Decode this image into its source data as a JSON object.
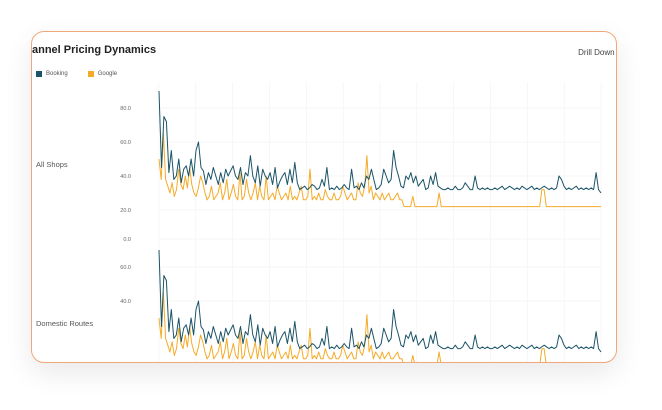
{
  "card": {
    "title": "annel Pricing Dynamics",
    "drill_label": "Drill Down t"
  },
  "legend": [
    {
      "label": "Booking",
      "color": "#1b5468"
    },
    {
      "label": "Google",
      "color": "#f5ab27"
    }
  ],
  "chart_data": [
    {
      "type": "line",
      "row_label": "All Shops",
      "y_ticks": [
        "80.0",
        "60.0",
        "40.0",
        "20.0",
        "0.0"
      ],
      "ylim": [
        0,
        90
      ],
      "grid": true,
      "legend_position": "top-left",
      "series": [
        {
          "name": "Booking",
          "color": "#1b5468",
          "values": [
            90,
            45,
            75,
            72,
            42,
            55,
            38,
            40,
            50,
            36,
            44,
            46,
            40,
            50,
            40,
            55,
            60,
            45,
            43,
            35,
            42,
            38,
            45,
            40,
            35,
            42,
            36,
            44,
            40,
            43,
            46,
            40,
            38,
            45,
            35,
            42,
            40,
            52,
            40,
            36,
            46,
            34,
            44,
            40,
            38,
            42,
            35,
            45,
            33,
            37,
            40,
            42,
            35,
            44,
            36,
            48,
            36,
            32,
            33,
            34,
            32,
            33,
            35,
            34,
            32,
            33,
            38,
            34,
            45,
            32,
            33,
            32,
            34,
            32,
            33,
            35,
            33,
            32,
            44,
            33,
            34,
            32,
            36,
            33,
            40,
            38,
            44,
            38,
            32,
            33,
            35,
            44,
            40,
            36,
            38,
            55,
            45,
            40,
            34,
            33,
            40,
            38,
            42,
            36,
            40,
            34,
            36,
            38,
            32,
            33,
            40,
            35,
            42,
            34,
            33,
            32,
            32,
            33,
            32,
            32,
            34,
            32,
            32,
            33,
            36,
            34,
            32,
            32,
            40,
            33,
            32,
            33,
            32,
            33,
            32,
            32,
            33,
            32,
            33,
            34,
            32,
            33,
            34,
            33,
            32,
            33,
            32,
            34,
            33,
            32,
            33,
            34,
            32,
            33,
            32,
            33,
            34,
            33,
            32,
            33,
            32,
            33,
            40,
            38,
            34,
            32,
            33,
            32,
            33,
            34,
            32,
            33,
            32,
            33,
            32,
            33,
            32,
            42,
            32,
            30
          ]
        },
        {
          "name": "Google",
          "color": "#f5ab27",
          "values": [
            50,
            38,
            65,
            38,
            34,
            30,
            36,
            28,
            32,
            44,
            35,
            32,
            40,
            33,
            45,
            35,
            30,
            28,
            33,
            40,
            36,
            30,
            26,
            28,
            34,
            26,
            28,
            30,
            36,
            26,
            30,
            38,
            26,
            30,
            35,
            28,
            26,
            42,
            26,
            28,
            38,
            30,
            26,
            30,
            36,
            26,
            34,
            28,
            26,
            40,
            26,
            28,
            30,
            26,
            34,
            30,
            26,
            28,
            30,
            26,
            34,
            26,
            28,
            26,
            30,
            34,
            26,
            26,
            28,
            44,
            26,
            28,
            26,
            30,
            26,
            26,
            32,
            28,
            26,
            26,
            30,
            26,
            26,
            28,
            34,
            30,
            26,
            28,
            30,
            26,
            26,
            36,
            30,
            28,
            34,
            52,
            30,
            34,
            26,
            30,
            28,
            26,
            30,
            26,
            28,
            30,
            26,
            26,
            28,
            30,
            26,
            26,
            22,
            22,
            22,
            22,
            28,
            22,
            22,
            22,
            22,
            22,
            22,
            22,
            22,
            22,
            22,
            22,
            30,
            22,
            22,
            22,
            22,
            22,
            22,
            22,
            22,
            22,
            22,
            22,
            22,
            22,
            22,
            22,
            22,
            22,
            22,
            22,
            22,
            22,
            22,
            22,
            22,
            22,
            22,
            22,
            22,
            22,
            22,
            22,
            22,
            22,
            22,
            22,
            22,
            22,
            22,
            22,
            22,
            22,
            22,
            22,
            22,
            22,
            22,
            32,
            32,
            22,
            22,
            22,
            22,
            22,
            22,
            22,
            22,
            22,
            22,
            22,
            22,
            22,
            22,
            22,
            22,
            22,
            22,
            22,
            22,
            22,
            22,
            22,
            22,
            22,
            22
          ]
        }
      ]
    },
    {
      "type": "line",
      "row_label": "Domestic Routes",
      "y_ticks": [
        "60.0",
        "40.0"
      ],
      "ylim": [
        0,
        90
      ],
      "grid": true,
      "series": [
        {
          "name": "Booking",
          "color": "#1b5468",
          "values": [
            90,
            45,
            75,
            72,
            42,
            55,
            38,
            40,
            50,
            36,
            44,
            46,
            40,
            50,
            40,
            55,
            60,
            45,
            43,
            35,
            42,
            38,
            45,
            40,
            35,
            42,
            36,
            44,
            40,
            43,
            46,
            40,
            38,
            45,
            35,
            42,
            40,
            52,
            40,
            36,
            46,
            34,
            44,
            40,
            38,
            42,
            35,
            45,
            33,
            37,
            40,
            42,
            35,
            44,
            36,
            48,
            36,
            32,
            33,
            34,
            32,
            33,
            35,
            34,
            32,
            33,
            38,
            34,
            45,
            32,
            33,
            32,
            34,
            32,
            33,
            35,
            33,
            32,
            44,
            33,
            34,
            32,
            36,
            33,
            40,
            38,
            44,
            38,
            32,
            33,
            35,
            44,
            40,
            36,
            38,
            55,
            45,
            40,
            34,
            33,
            40,
            38,
            42,
            36,
            40,
            34,
            36,
            38,
            32,
            33,
            40,
            35,
            42,
            34,
            33,
            32,
            32,
            33,
            32,
            32,
            34,
            32,
            32,
            33,
            36,
            34,
            32,
            32,
            40,
            33,
            32,
            33,
            32,
            33,
            32,
            32,
            33,
            32,
            33,
            34,
            32,
            33,
            34,
            33,
            32,
            33,
            32,
            34,
            33,
            32,
            33,
            34,
            32,
            33,
            32,
            33,
            34,
            33,
            32,
            33,
            32,
            33,
            40,
            38,
            34,
            32,
            33,
            32,
            33,
            34,
            32,
            33,
            32,
            33,
            32,
            33,
            32,
            42,
            32,
            30
          ]
        },
        {
          "name": "Google",
          "color": "#f5ab27",
          "values": [
            50,
            38,
            65,
            38,
            34,
            30,
            36,
            28,
            32,
            44,
            35,
            32,
            40,
            33,
            45,
            35,
            30,
            28,
            33,
            40,
            36,
            30,
            26,
            28,
            34,
            26,
            28,
            30,
            36,
            26,
            30,
            38,
            26,
            30,
            35,
            28,
            26,
            42,
            26,
            28,
            38,
            30,
            26,
            30,
            36,
            26,
            34,
            28,
            26,
            40,
            26,
            28,
            30,
            26,
            34,
            30,
            26,
            28,
            30,
            26,
            34,
            26,
            28,
            26,
            30,
            34,
            26,
            26,
            28,
            44,
            26,
            28,
            26,
            30,
            26,
            26,
            32,
            28,
            26,
            26,
            30,
            26,
            26,
            28,
            34,
            30,
            26,
            28,
            30,
            26,
            26,
            36,
            30,
            28,
            34,
            52,
            30,
            34,
            26,
            30,
            28,
            26,
            30,
            26,
            28,
            30,
            26,
            26,
            28,
            30,
            26,
            26,
            22,
            22,
            22,
            22,
            28,
            22,
            22,
            22,
            22,
            22,
            22,
            22,
            22,
            22,
            22,
            22,
            30,
            22,
            22,
            22,
            22,
            22,
            22,
            22,
            22,
            22,
            22,
            22,
            22,
            22,
            22,
            22,
            22,
            22,
            22,
            22,
            22,
            22,
            22,
            22,
            22,
            22,
            22,
            22,
            22,
            22,
            22,
            22,
            22,
            22,
            22,
            22,
            22,
            22,
            22,
            22,
            22,
            22,
            22,
            22,
            22,
            22,
            22,
            32,
            32,
            22,
            22,
            22,
            22,
            22,
            22,
            22,
            22,
            22,
            22,
            22,
            22,
            22,
            22,
            22,
            22,
            22,
            22,
            22,
            22,
            22,
            22,
            22,
            22,
            22,
            22
          ]
        }
      ]
    }
  ]
}
